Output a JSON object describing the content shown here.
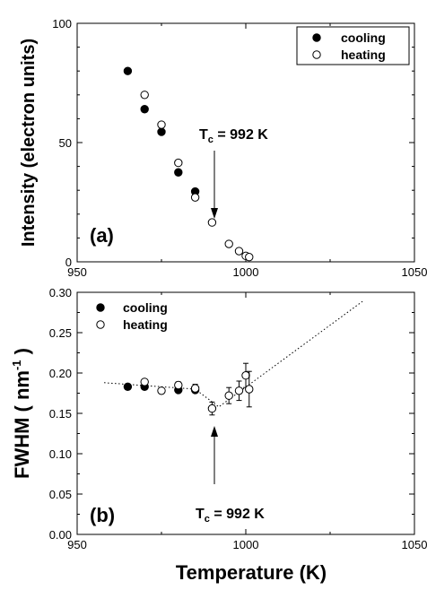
{
  "chart_data": [
    {
      "type": "scatter",
      "panel_label": "(a)",
      "xlabel": "",
      "ylabel": "Intensity  (electron units)",
      "xlim": [
        950,
        1050
      ],
      "ylim": [
        0,
        100
      ],
      "xticks": [
        "950",
        "1000",
        "1050"
      ],
      "yticks": [
        "0",
        "50",
        "100"
      ],
      "legend": {
        "placement": "top-right",
        "entries": [
          "cooling",
          "heating"
        ]
      },
      "annotation": {
        "main": "T",
        "sub": "c",
        "rest": " = 992 K",
        "x": 992
      },
      "series": [
        {
          "name": "cooling",
          "marker": "filled-circle",
          "x": [
            965,
            970,
            975,
            980,
            985
          ],
          "y": [
            80,
            64,
            54.5,
            37.5,
            29.5
          ]
        },
        {
          "name": "heating",
          "marker": "open-circle",
          "x": [
            970,
            975,
            980,
            985,
            990,
            995,
            998,
            1000,
            1001
          ],
          "y": [
            70,
            57.5,
            41.5,
            27,
            16.5,
            7.5,
            4.5,
            2.5,
            2
          ]
        }
      ]
    },
    {
      "type": "scatter",
      "panel_label": "(b)",
      "xlabel": "Temperature  (K)",
      "ylabel": "FWHM ( nm-1 )",
      "ylabel_parts": {
        "main": "FWHM ( nm",
        "sup": "-1",
        "end": " )"
      },
      "xlim": [
        950,
        1050
      ],
      "ylim": [
        0,
        0.3
      ],
      "xticks": [
        "950",
        "1000",
        "1050"
      ],
      "yticks": [
        "0.00",
        "0.05",
        "0.10",
        "0.15",
        "0.20",
        "0.25",
        "0.30"
      ],
      "legend": {
        "placement": "top-left",
        "entries": [
          "cooling",
          "heating"
        ]
      },
      "annotation": {
        "main": "T",
        "sub": "c",
        "rest": " = 992 K",
        "x": 992
      },
      "trend_line": {
        "style": "dotted",
        "x": [
          958,
          985,
          992,
          1035
        ],
        "y": [
          0.188,
          0.18,
          0.158,
          0.29
        ]
      },
      "series": [
        {
          "name": "cooling",
          "marker": "filled-circle",
          "x": [
            965,
            970,
            980,
            985
          ],
          "y": [
            0.183,
            0.183,
            0.179,
            0.179
          ],
          "err": [
            0.003,
            0.003,
            0.003,
            0.003
          ]
        },
        {
          "name": "heating",
          "marker": "open-circle",
          "x": [
            970,
            975,
            980,
            985,
            990,
            995,
            998,
            1000,
            1001
          ],
          "y": [
            0.189,
            0.178,
            0.185,
            0.181,
            0.156,
            0.172,
            0.178,
            0.197,
            0.18
          ],
          "err": [
            0.003,
            0.003,
            0.004,
            0.005,
            0.008,
            0.01,
            0.012,
            0.015,
            0.022
          ]
        }
      ]
    }
  ]
}
